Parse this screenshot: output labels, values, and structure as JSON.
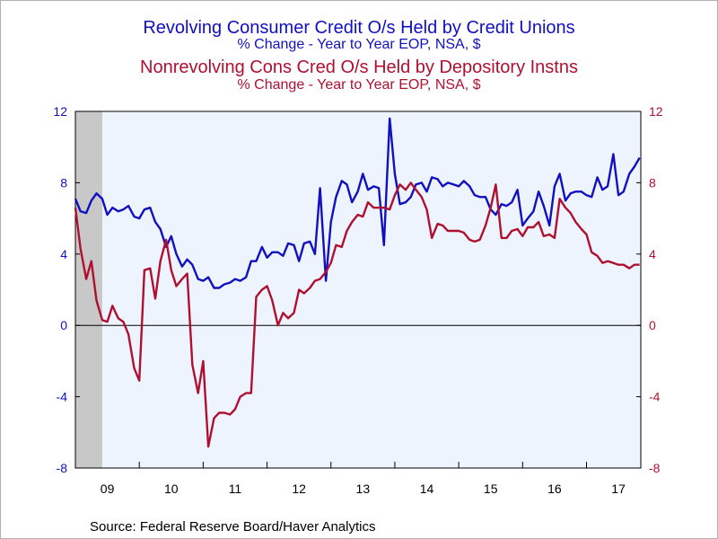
{
  "titles": {
    "series1_title": "Revolving Consumer Credit O/s Held by Credit Unions",
    "series1_subtitle": "% Change - Year to Year     EOP, NSA, $",
    "series2_title": "Nonrevolving Cons Cred O/s Held by Depository Instns",
    "series2_subtitle": "% Change - Year to Year     EOP, NSA, $"
  },
  "source": "Source:  Federal Reserve Board/Haver Analytics",
  "colors": {
    "series1": "#1010c0",
    "series2": "#b01030",
    "plot_bg": "#eef4fe",
    "recession": "#c8c8c8"
  },
  "chart_data": {
    "type": "line",
    "x_ticks": [
      "09",
      "10",
      "11",
      "12",
      "13",
      "14",
      "15",
      "16",
      "17"
    ],
    "x_range": [
      2009.0,
      2017.85
    ],
    "left_axis": {
      "ticks": [
        "12",
        "8",
        "4",
        "0",
        "-4",
        "-8"
      ],
      "ylim": [
        -8,
        12
      ],
      "color": "#1010c0"
    },
    "right_axis": {
      "ticks": [
        "12",
        "8",
        "4",
        "0",
        "-4",
        "-8"
      ],
      "ylim": [
        -8,
        12
      ],
      "color": "#b01030"
    },
    "recession_shading": [
      2009.0,
      2009.42
    ],
    "zero_line": true,
    "series": [
      {
        "axis": "left",
        "x": [
          2009.0,
          2009.08,
          2009.17,
          2009.25,
          2009.33,
          2009.42,
          2009.5,
          2009.58,
          2009.67,
          2009.75,
          2009.83,
          2009.92,
          2010.0,
          2010.08,
          2010.17,
          2010.25,
          2010.33,
          2010.42,
          2010.5,
          2010.58,
          2010.67,
          2010.75,
          2010.83,
          2010.92,
          2011.0,
          2011.08,
          2011.17,
          2011.25,
          2011.33,
          2011.42,
          2011.5,
          2011.58,
          2011.67,
          2011.75,
          2011.83,
          2011.92,
          2012.0,
          2012.08,
          2012.17,
          2012.25,
          2012.33,
          2012.42,
          2012.5,
          2012.58,
          2012.67,
          2012.75,
          2012.83,
          2012.92,
          2013.0,
          2013.08,
          2013.17,
          2013.25,
          2013.33,
          2013.42,
          2013.5,
          2013.58,
          2013.67,
          2013.75,
          2013.83,
          2013.92,
          2014.0,
          2014.08,
          2014.17,
          2014.25,
          2014.33,
          2014.42,
          2014.5,
          2014.58,
          2014.67,
          2014.75,
          2014.83,
          2014.92,
          2015.0,
          2015.08,
          2015.17,
          2015.25,
          2015.33,
          2015.42,
          2015.5,
          2015.58,
          2015.67,
          2015.75,
          2015.83,
          2015.92,
          2016.0,
          2016.08,
          2016.17,
          2016.25,
          2016.33,
          2016.42,
          2016.5,
          2016.58,
          2016.67,
          2016.75,
          2016.83,
          2016.92,
          2017.0,
          2017.08,
          2017.17,
          2017.25,
          2017.33,
          2017.42,
          2017.5,
          2017.58,
          2017.67,
          2017.75,
          2017.83
        ],
        "values": [
          7.1,
          6.4,
          6.3,
          7.0,
          7.4,
          7.1,
          6.2,
          6.6,
          6.4,
          6.5,
          6.7,
          6.1,
          6.0,
          6.5,
          6.6,
          5.8,
          5.4,
          4.4,
          5.0,
          4.0,
          3.3,
          3.7,
          3.4,
          2.6,
          2.5,
          2.7,
          2.1,
          2.1,
          2.3,
          2.4,
          2.6,
          2.5,
          2.7,
          3.6,
          3.6,
          4.4,
          3.8,
          4.1,
          4.1,
          3.9,
          4.6,
          4.5,
          3.6,
          4.6,
          4.7,
          4.0,
          7.7,
          2.5,
          5.8,
          7.2,
          8.1,
          7.9,
          6.9,
          7.5,
          8.5,
          7.6,
          7.8,
          7.7,
          4.5,
          11.6,
          8.5,
          6.8,
          6.9,
          7.2,
          7.9,
          8.0,
          7.5,
          8.3,
          8.2,
          7.8,
          8.0,
          7.9,
          7.8,
          8.1,
          7.8,
          7.3,
          7.2,
          7.2,
          6.5,
          6.2,
          6.8,
          6.7,
          6.9,
          7.6,
          5.6,
          6.0,
          6.4,
          7.5,
          6.7,
          5.6,
          7.8,
          8.5,
          7.0,
          7.4,
          7.5,
          7.5,
          7.3,
          7.2,
          8.3,
          7.6,
          7.8,
          9.6,
          7.3,
          7.5,
          8.5,
          8.9,
          9.4
        ]
      },
      {
        "axis": "right",
        "x": [
          2009.0,
          2009.08,
          2009.17,
          2009.25,
          2009.33,
          2009.42,
          2009.5,
          2009.58,
          2009.67,
          2009.75,
          2009.83,
          2009.92,
          2010.0,
          2010.08,
          2010.17,
          2010.25,
          2010.33,
          2010.42,
          2010.5,
          2010.58,
          2010.67,
          2010.75,
          2010.83,
          2010.92,
          2011.0,
          2011.08,
          2011.17,
          2011.25,
          2011.33,
          2011.42,
          2011.5,
          2011.58,
          2011.67,
          2011.75,
          2011.83,
          2011.92,
          2012.0,
          2012.08,
          2012.17,
          2012.25,
          2012.33,
          2012.42,
          2012.5,
          2012.58,
          2012.67,
          2012.75,
          2012.83,
          2012.92,
          2013.0,
          2013.08,
          2013.17,
          2013.25,
          2013.33,
          2013.42,
          2013.5,
          2013.58,
          2013.67,
          2013.75,
          2013.83,
          2013.92,
          2014.0,
          2014.08,
          2014.17,
          2014.25,
          2014.33,
          2014.42,
          2014.5,
          2014.58,
          2014.67,
          2014.75,
          2014.83,
          2014.92,
          2015.0,
          2015.08,
          2015.17,
          2015.25,
          2015.33,
          2015.42,
          2015.5,
          2015.58,
          2015.67,
          2015.75,
          2015.83,
          2015.92,
          2016.0,
          2016.08,
          2016.17,
          2016.25,
          2016.33,
          2016.42,
          2016.5,
          2016.58,
          2016.67,
          2016.75,
          2016.83,
          2016.92,
          2017.0,
          2017.08,
          2017.17,
          2017.25,
          2017.33,
          2017.42,
          2017.5,
          2017.58,
          2017.67,
          2017.75,
          2017.83
        ],
        "values": [
          6.6,
          4.3,
          2.6,
          3.6,
          1.4,
          0.3,
          0.2,
          1.1,
          0.4,
          0.2,
          -0.5,
          -2.4,
          -3.1,
          3.1,
          3.2,
          1.5,
          3.6,
          4.8,
          3.1,
          2.2,
          2.6,
          2.9,
          -2.2,
          -3.8,
          -2.0,
          -6.8,
          -5.2,
          -4.9,
          -4.9,
          -5.0,
          -4.7,
          -4.0,
          -3.8,
          -3.8,
          1.6,
          2.0,
          2.2,
          1.4,
          0.0,
          0.7,
          0.4,
          0.7,
          2.0,
          1.8,
          2.1,
          2.5,
          2.6,
          3.0,
          3.5,
          4.5,
          4.4,
          5.3,
          5.8,
          6.2,
          6.1,
          6.9,
          6.6,
          6.6,
          6.6,
          6.5,
          7.3,
          7.9,
          7.6,
          8.0,
          7.6,
          7.2,
          6.5,
          4.9,
          5.7,
          5.6,
          5.3,
          5.3,
          5.3,
          5.2,
          4.8,
          4.7,
          4.8,
          5.6,
          6.6,
          7.9,
          4.9,
          4.9,
          5.3,
          5.4,
          5.0,
          5.5,
          5.5,
          5.8,
          5.0,
          5.1,
          4.9,
          7.1,
          6.6,
          6.3,
          5.8,
          5.4,
          5.1,
          4.1,
          3.9,
          3.5,
          3.6,
          3.5,
          3.4,
          3.4,
          3.2,
          3.4,
          3.4
        ]
      }
    ]
  }
}
